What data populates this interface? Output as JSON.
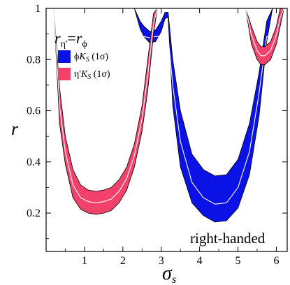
{
  "chart_data": {
    "type": "area",
    "xlabel": "σ",
    "xlabel_sub": "s",
    "ylabel": "r",
    "xlim": [
      0,
      6.283
    ],
    "ylim": [
      0.05,
      1.0
    ],
    "x_ticks": [
      1,
      2,
      3,
      4,
      5,
      6
    ],
    "x_tick_labels": [
      "1",
      "2",
      "3",
      "4",
      "5",
      "6"
    ],
    "y_ticks": [
      0.2,
      0.4,
      0.6,
      0.8,
      1.0
    ],
    "y_tick_labels": [
      "0.2",
      "0.4",
      "0.6",
      "0.8",
      "1"
    ],
    "annotation": "right-handed",
    "legend": {
      "title_main": "r",
      "title_sub1": "η'",
      "title_eq": "=",
      "title_main2": "r",
      "title_sub2": "ϕ",
      "placement": "top-left",
      "entries": [
        {
          "prefix": "ϕ",
          "italic": "K",
          "sub": "S",
          "suffix": " (1σ)",
          "color": "#0a12e6"
        },
        {
          "prefix": "η'",
          "italic": "K",
          "sub": "S",
          "suffix": " (1σ)",
          "color": "#f2416b"
        }
      ]
    },
    "colors": {
      "phiKs": "#0a12e6",
      "etaKs": "#f2416b",
      "central": "#ffffff"
    },
    "series": [
      {
        "name": "ϕK_S (1σ)",
        "color": "#0a12e6",
        "x": [
          2.3,
          2.45,
          2.55,
          2.7,
          2.85,
          3.0,
          3.1,
          3.18,
          3.3,
          3.5,
          3.8,
          4.1,
          4.4,
          4.7,
          5.0,
          5.3,
          5.55,
          5.75,
          5.9
        ],
        "upper": [
          1.0,
          0.95,
          0.93,
          0.91,
          0.915,
          0.95,
          0.985,
          0.985,
          0.8,
          0.6,
          0.43,
          0.37,
          0.345,
          0.35,
          0.41,
          0.55,
          0.75,
          0.95,
          1.0
        ],
        "lower": [
          1.0,
          0.92,
          0.89,
          0.865,
          0.87,
          0.91,
          0.96,
          0.965,
          0.62,
          0.38,
          0.24,
          0.19,
          0.165,
          0.17,
          0.22,
          0.35,
          0.58,
          0.87,
          1.0
        ],
        "central": [
          1.0,
          0.935,
          0.91,
          0.885,
          0.89,
          0.93,
          0.975,
          0.975,
          0.7,
          0.48,
          0.32,
          0.26,
          0.235,
          0.24,
          0.3,
          0.44,
          0.67,
          0.91,
          1.0
        ],
        "central_limit": 0.89
      },
      {
        "name": "η'K_S (1σ)",
        "color": "#f2416b",
        "x": [
          0.2,
          0.35,
          0.5,
          0.7,
          0.9,
          1.1,
          1.3,
          1.5,
          1.7,
          1.9,
          2.1,
          2.3,
          2.5,
          2.65,
          2.8,
          2.9
        ],
        "upper": [
          1.0,
          0.69,
          0.5,
          0.37,
          0.31,
          0.29,
          0.285,
          0.29,
          0.3,
          0.33,
          0.38,
          0.47,
          0.62,
          0.8,
          0.98,
          1.0
        ],
        "lower": [
          1.0,
          0.55,
          0.39,
          0.26,
          0.215,
          0.2,
          0.195,
          0.2,
          0.21,
          0.24,
          0.29,
          0.38,
          0.52,
          0.68,
          0.9,
          1.0
        ],
        "central": [
          1.0,
          0.62,
          0.44,
          0.31,
          0.26,
          0.245,
          0.24,
          0.245,
          0.255,
          0.285,
          0.335,
          0.425,
          0.57,
          0.74,
          0.94,
          1.0
        ]
      },
      {
        "name": "η'K_S (1σ) right lobe",
        "color": "#f2416b",
        "x": [
          5.2,
          5.35,
          5.5,
          5.6,
          5.7,
          5.85,
          6.0,
          6.1,
          6.2
        ],
        "upper": [
          1.0,
          0.93,
          0.87,
          0.85,
          0.85,
          0.87,
          0.93,
          1.0,
          1.0
        ],
        "lower": [
          1.0,
          0.86,
          0.8,
          0.78,
          0.78,
          0.8,
          0.86,
          0.93,
          1.0
        ],
        "central": [
          1.0,
          0.895,
          0.835,
          0.815,
          0.815,
          0.835,
          0.895,
          0.965,
          1.0
        ]
      }
    ]
  }
}
